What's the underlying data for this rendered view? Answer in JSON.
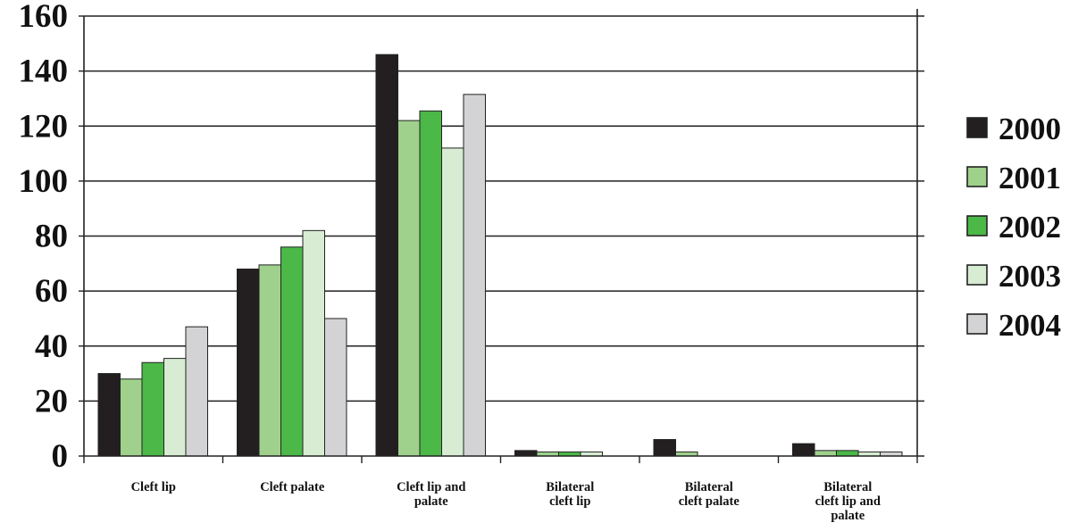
{
  "chart_data": {
    "type": "bar",
    "title": "",
    "xlabel": "",
    "ylabel": "",
    "ylim": [
      0,
      160
    ],
    "yticks": [
      0,
      20,
      40,
      60,
      80,
      100,
      120,
      140,
      160
    ],
    "grid": true,
    "legend_position": "right",
    "categories": [
      [
        "Cleft lip"
      ],
      [
        "Cleft palate"
      ],
      [
        "Cleft lip and",
        "palate"
      ],
      [
        "Bilateral",
        "cleft lip"
      ],
      [
        "Bilateral",
        "cleft palate"
      ],
      [
        "Bilateral",
        "cleft lip and",
        "palate"
      ]
    ],
    "series": [
      {
        "name": "2000",
        "color": "#231f20",
        "values": [
          30,
          68,
          146,
          2,
          6,
          4.5
        ]
      },
      {
        "name": "2001",
        "color": "#9fd18c",
        "values": [
          28,
          69.5,
          122,
          1.5,
          1.5,
          2
        ]
      },
      {
        "name": "2002",
        "color": "#4bb848",
        "values": [
          34,
          76,
          125.5,
          1.5,
          0,
          2
        ]
      },
      {
        "name": "2003",
        "color": "#d7ecd2",
        "values": [
          35.5,
          82,
          112,
          1.5,
          0,
          1.5
        ]
      },
      {
        "name": "2004",
        "color": "#d3d3d5",
        "values": [
          47,
          50,
          131.5,
          0,
          0,
          1.5
        ]
      }
    ]
  }
}
